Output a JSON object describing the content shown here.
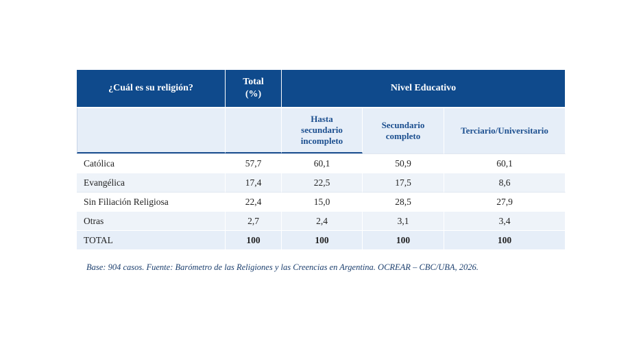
{
  "table": {
    "header": {
      "question": "¿Cuál es su religión?",
      "total_line1": "Total",
      "total_line2": "(%)",
      "group": "Nivel Educativo"
    },
    "subheaders": [
      [
        "Hasta",
        "secundario",
        "incompleto"
      ],
      [
        "Secundario",
        "completo"
      ],
      [
        "Terciario/Universitario"
      ]
    ],
    "rows": [
      {
        "label": "Católica",
        "total": "57,7",
        "v1": "60,1",
        "v2": "50,9",
        "v3": "60,1"
      },
      {
        "label": "Evangélica",
        "total": "17,4",
        "v1": "22,5",
        "v2": "17,5",
        "v3": "8,6"
      },
      {
        "label": "Sin Filiación Religiosa",
        "total": "22,4",
        "v1": "15,0",
        "v2": "28,5",
        "v3": "27,9"
      },
      {
        "label": "Otras",
        "total": "2,7",
        "v1": "2,4",
        "v2": "3,1",
        "v3": "3,4"
      },
      {
        "label": "TOTAL",
        "total": "100",
        "v1": "100",
        "v2": "100",
        "v3": "100"
      }
    ]
  },
  "note": "Base: 904 casos. Fuente: Barómetro de las Religiones y las Creencias en Argentina. OCREAR – CBC/UBA, 2026.",
  "colors": {
    "header": "#0f4a8c",
    "subheader_text": "#1c4f8f",
    "band": "#eef3f9"
  }
}
